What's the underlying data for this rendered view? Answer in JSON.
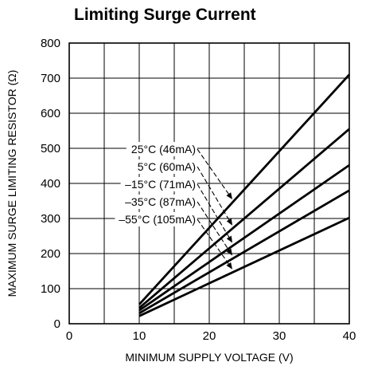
{
  "chart_data": {
    "type": "line",
    "title": "Limiting Surge Current",
    "xlabel": "MINIMUM SUPPLY VOLTAGE (V)",
    "ylabel": "MAXIMUM SURGE LIMITING RESISTOR (Ω)",
    "xlim": [
      0,
      40
    ],
    "ylim": [
      0,
      800
    ],
    "xticks": [
      0,
      10,
      20,
      30,
      40
    ],
    "yticks": [
      0,
      100,
      200,
      300,
      400,
      500,
      600,
      700,
      800
    ],
    "grid": true,
    "series": [
      {
        "name": "25°C (46mA)",
        "x": [
          10,
          40
        ],
        "y": [
          55,
          710
        ]
      },
      {
        "name": "5°C (60mA)",
        "x": [
          10,
          40
        ],
        "y": [
          45,
          555
        ]
      },
      {
        "name": "–15°C (71mA)",
        "x": [
          10,
          40
        ],
        "y": [
          38,
          452
        ]
      },
      {
        "name": "–35°C (87mA)",
        "x": [
          10,
          40
        ],
        "y": [
          30,
          380
        ]
      },
      {
        "name": "–55°C (105mA)",
        "x": [
          10,
          40
        ],
        "y": [
          22,
          302
        ]
      }
    ],
    "annotations": [
      "25°C (46mA)",
      "5°C (60mA)",
      "–15°C (71mA)",
      "–35°C (87mA)",
      "–55°C (105mA)"
    ]
  }
}
